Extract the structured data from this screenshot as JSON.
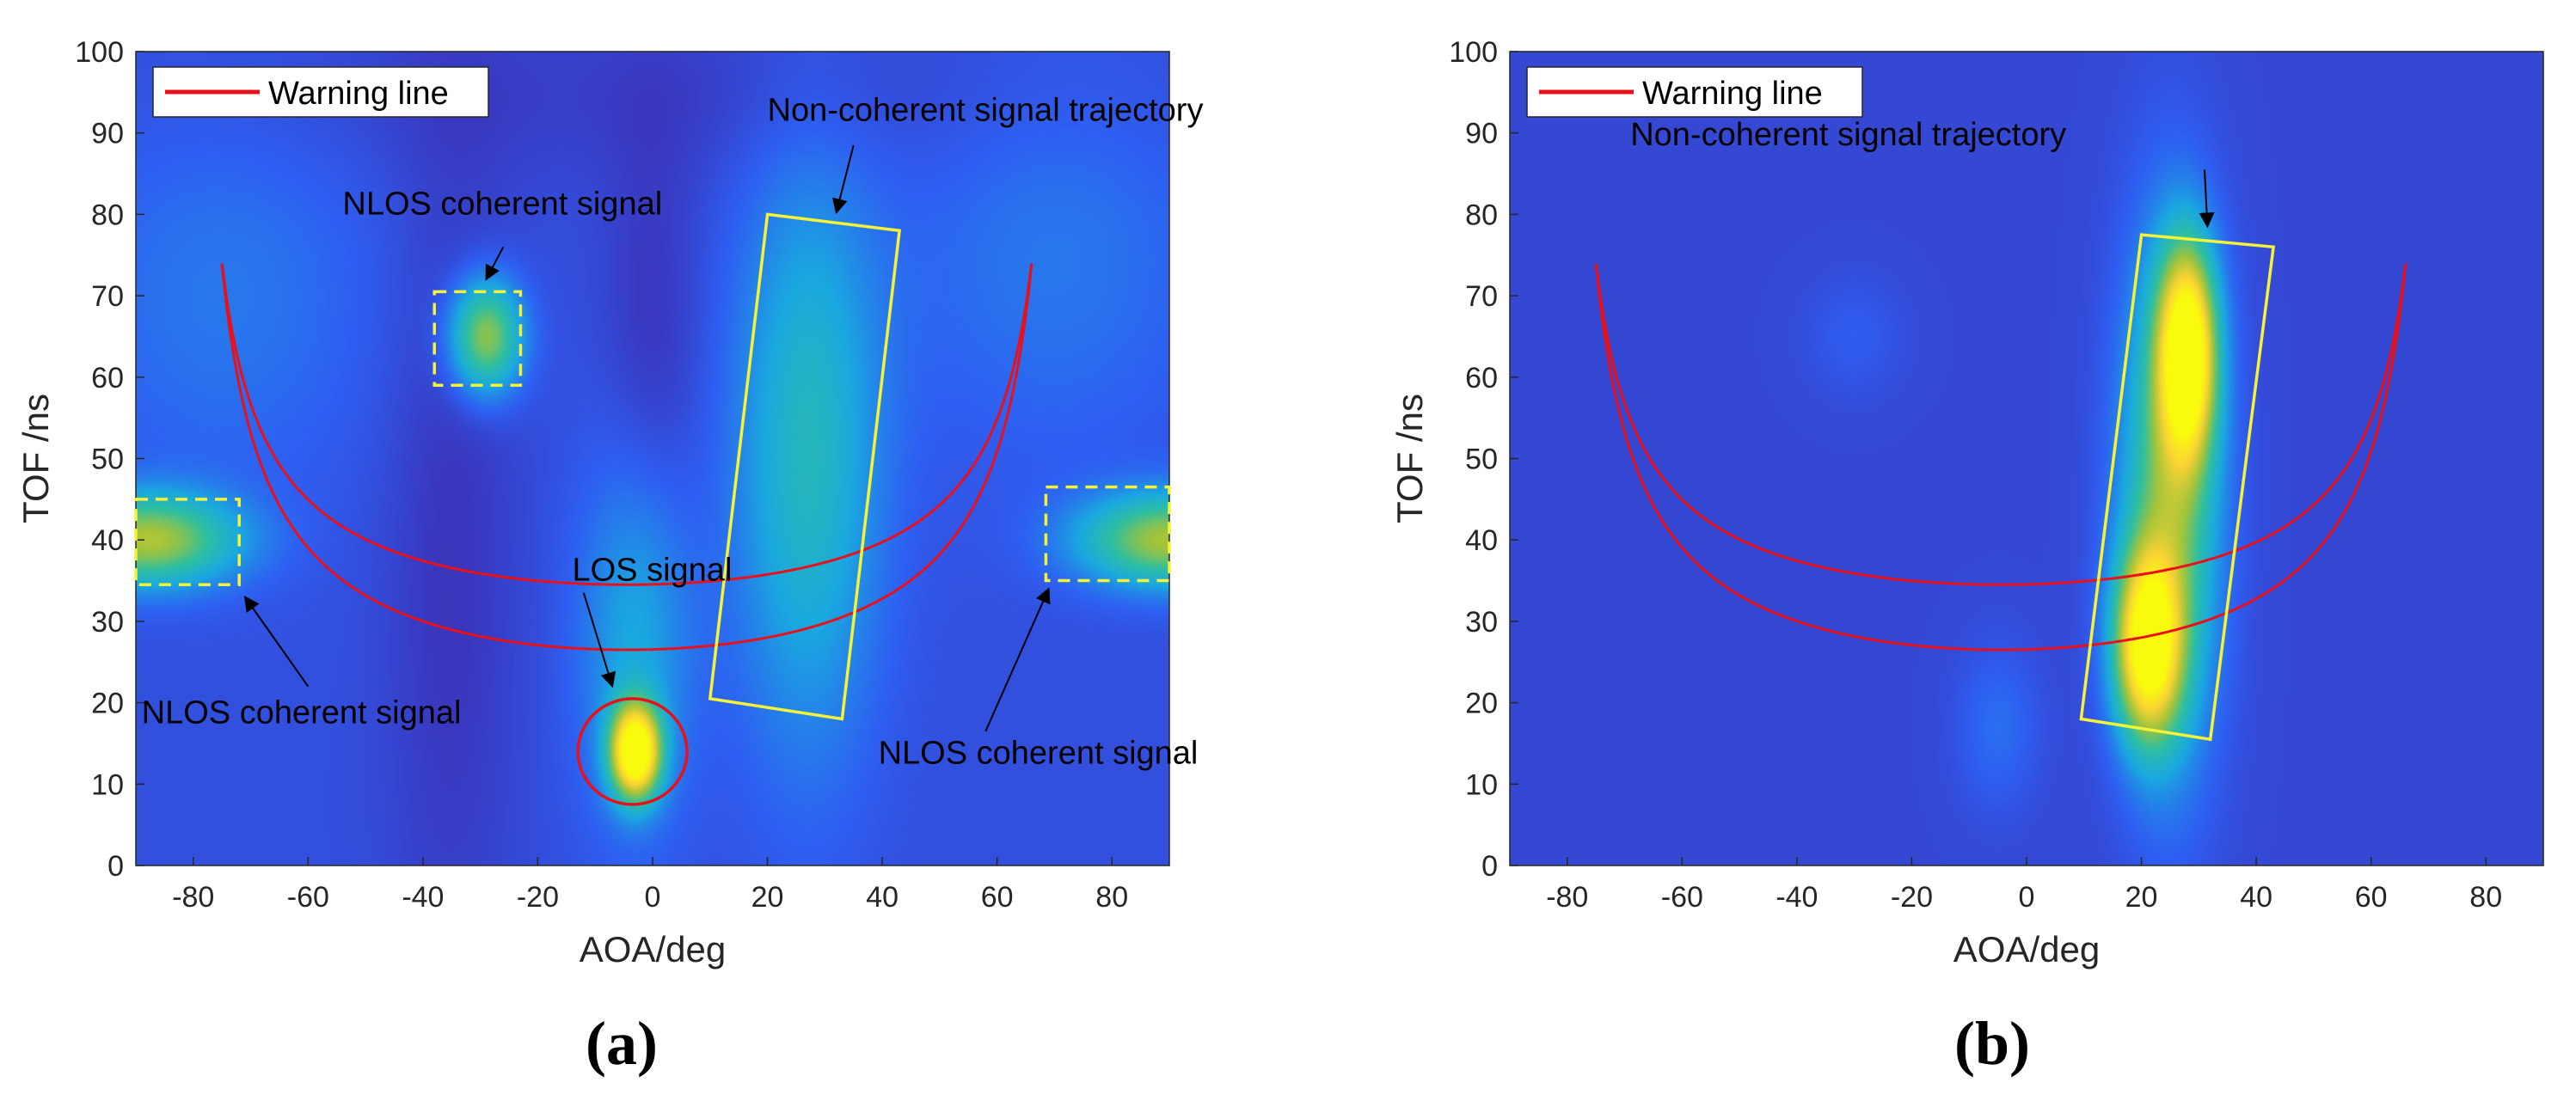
{
  "chart_data": [
    {
      "type": "heatmap",
      "panel_label": "(a)",
      "xlabel": "AOA/deg",
      "ylabel": "TOF /ns",
      "xlim": [
        -90,
        90
      ],
      "ylim": [
        0,
        100
      ],
      "xticks": [
        -80,
        -60,
        -40,
        -20,
        0,
        20,
        40,
        60,
        80
      ],
      "yticks": [
        0,
        10,
        20,
        30,
        40,
        50,
        60,
        70,
        80,
        90,
        100
      ],
      "colormap": [
        "#3e26a8",
        "#2e5ff2",
        "#1aa9e0",
        "#2fbf9f",
        "#a3c43a",
        "#fbd334",
        "#f9fb0e"
      ],
      "legend": {
        "label": "Warning line",
        "color": "#e8101a",
        "placement": "top-left"
      },
      "warning_lines": [
        {
          "asymptotes": [
            -80,
            71
          ],
          "min_tof": 34.5,
          "rise": 40
        },
        {
          "asymptotes": [
            -80,
            71
          ],
          "min_tof": 26.5,
          "rise": 48
        }
      ],
      "blobs": [
        {
          "aoa": -29,
          "tof": 65,
          "sx": 4.5,
          "sy": 5,
          "amp": 0.55
        },
        {
          "aoa": -88,
          "tof": 40,
          "sx": 11,
          "sy": 4,
          "amp": 0.55
        },
        {
          "aoa": 90,
          "tof": 40,
          "sx": 11,
          "sy": 4,
          "amp": 0.55
        },
        {
          "aoa": -3,
          "tof": 14,
          "sx": 3,
          "sy": 4,
          "amp": 1.0
        },
        {
          "aoa": -3,
          "tof": 28,
          "sx": 7,
          "sy": 16,
          "amp": 0.22
        },
        {
          "aoa": 27,
          "tof": 50,
          "sx": 9,
          "sy": 25,
          "amp": 0.3
        },
        {
          "aoa": -75,
          "tof": 70,
          "sx": 20,
          "sy": 18,
          "amp": 0.1
        },
        {
          "aoa": 70,
          "tof": 75,
          "sx": 20,
          "sy": 18,
          "amp": 0.1
        }
      ],
      "base_level": 0.12,
      "dark_regions": [
        {
          "aoa": -35,
          "tof": 40,
          "sx": 8,
          "sy": 40,
          "amp": 0.08
        },
        {
          "aoa": 0,
          "tof": 65,
          "sx": 6,
          "sy": 18,
          "amp": 0.08
        },
        {
          "aoa": 0,
          "tof": 95,
          "sx": 60,
          "sy": 8,
          "amp": 0.05
        }
      ],
      "dashed_boxes": [
        {
          "aoa": [
            -38,
            -23
          ],
          "tof": [
            59,
            70.5
          ]
        },
        {
          "aoa": [
            -90,
            -72
          ],
          "tof": [
            34.5,
            45
          ]
        },
        {
          "aoa": [
            68.5,
            90
          ],
          "tof": [
            35,
            46.5
          ]
        }
      ],
      "trajectory_box": [
        [
          20,
          80
        ],
        [
          43,
          78
        ],
        [
          33,
          18
        ],
        [
          10,
          20.5
        ]
      ],
      "los_circle": {
        "aoa": -3.5,
        "tof": 14,
        "rx": 9.5,
        "ry": 6.5
      },
      "annotations": [
        {
          "text": "Non-coherent signal  trajectory",
          "x": 20,
          "y": 91.5,
          "anchor": "start",
          "arrow_from": [
            35,
            88.5
          ],
          "arrow_to": [
            32,
            80.2
          ]
        },
        {
          "text": "NLOS coherent signal",
          "x": -54,
          "y": 80,
          "anchor": "start",
          "arrow_from": [
            -26,
            76
          ],
          "arrow_to": [
            -29,
            72
          ]
        },
        {
          "text": "LOS signal",
          "x": -14,
          "y": 35,
          "anchor": "start",
          "arrow_from": [
            -12,
            33.5
          ],
          "arrow_to": [
            -7,
            22
          ]
        },
        {
          "text": "NLOS coherent signal",
          "x": -89,
          "y": 17.5,
          "anchor": "start",
          "arrow_from": [
            -60,
            22
          ],
          "arrow_to": [
            -71,
            33
          ]
        },
        {
          "text": "NLOS coherent signal",
          "x": 95,
          "y": 12.5,
          "anchor": "end",
          "arrow_from": [
            58,
            16.5
          ],
          "arrow_to": [
            69,
            34
          ]
        }
      ]
    },
    {
      "type": "heatmap",
      "panel_label": "(b)",
      "xlabel": "AOA/deg",
      "ylabel": "TOF /ns",
      "xlim": [
        -90,
        90
      ],
      "ylim": [
        0,
        100
      ],
      "xticks": [
        -80,
        -60,
        -40,
        -20,
        0,
        20,
        40,
        60,
        80
      ],
      "yticks": [
        0,
        10,
        20,
        30,
        40,
        50,
        60,
        70,
        80,
        90,
        100
      ],
      "colormap": [
        "#3e26a8",
        "#2e5ff2",
        "#1aa9e0",
        "#2fbf9f",
        "#a3c43a",
        "#fbd334",
        "#f9fb0e"
      ],
      "legend": {
        "label": "Warning line",
        "color": "#e8101a",
        "placement": "top-left"
      },
      "warning_lines": [
        {
          "asymptotes": [
            -80,
            71
          ],
          "min_tof": 34.5,
          "rise": 40
        },
        {
          "asymptotes": [
            -80,
            71
          ],
          "min_tof": 26.5,
          "rise": 48
        }
      ],
      "blobs": [
        {
          "aoa": 28,
          "tof": 63,
          "sx": 3.5,
          "sy": 9,
          "amp": 0.9
        },
        {
          "aoa": 21,
          "tof": 27,
          "sx": 4,
          "sy": 8,
          "amp": 0.85
        },
        {
          "aoa": 25,
          "tof": 45,
          "sx": 6,
          "sy": 22,
          "amp": 0.5
        },
        {
          "aoa": -5,
          "tof": 17,
          "sx": 5,
          "sy": 7,
          "amp": 0.1
        },
        {
          "aoa": -30,
          "tof": 65,
          "sx": 6,
          "sy": 5,
          "amp": 0.06
        }
      ],
      "base_level": 0.1,
      "dark_regions": [],
      "dashed_boxes": [],
      "trajectory_box": [
        [
          20,
          77.5
        ],
        [
          43,
          76
        ],
        [
          32,
          15.5
        ],
        [
          9.5,
          18
        ]
      ],
      "los_circle": null,
      "annotations": [
        {
          "text": "Non-coherent signal  trajectory",
          "x": -69,
          "y": 88.5,
          "anchor": "start",
          "arrow_from": [
            31,
            85.5
          ],
          "arrow_to": [
            31.5,
            78.5
          ]
        }
      ]
    }
  ]
}
